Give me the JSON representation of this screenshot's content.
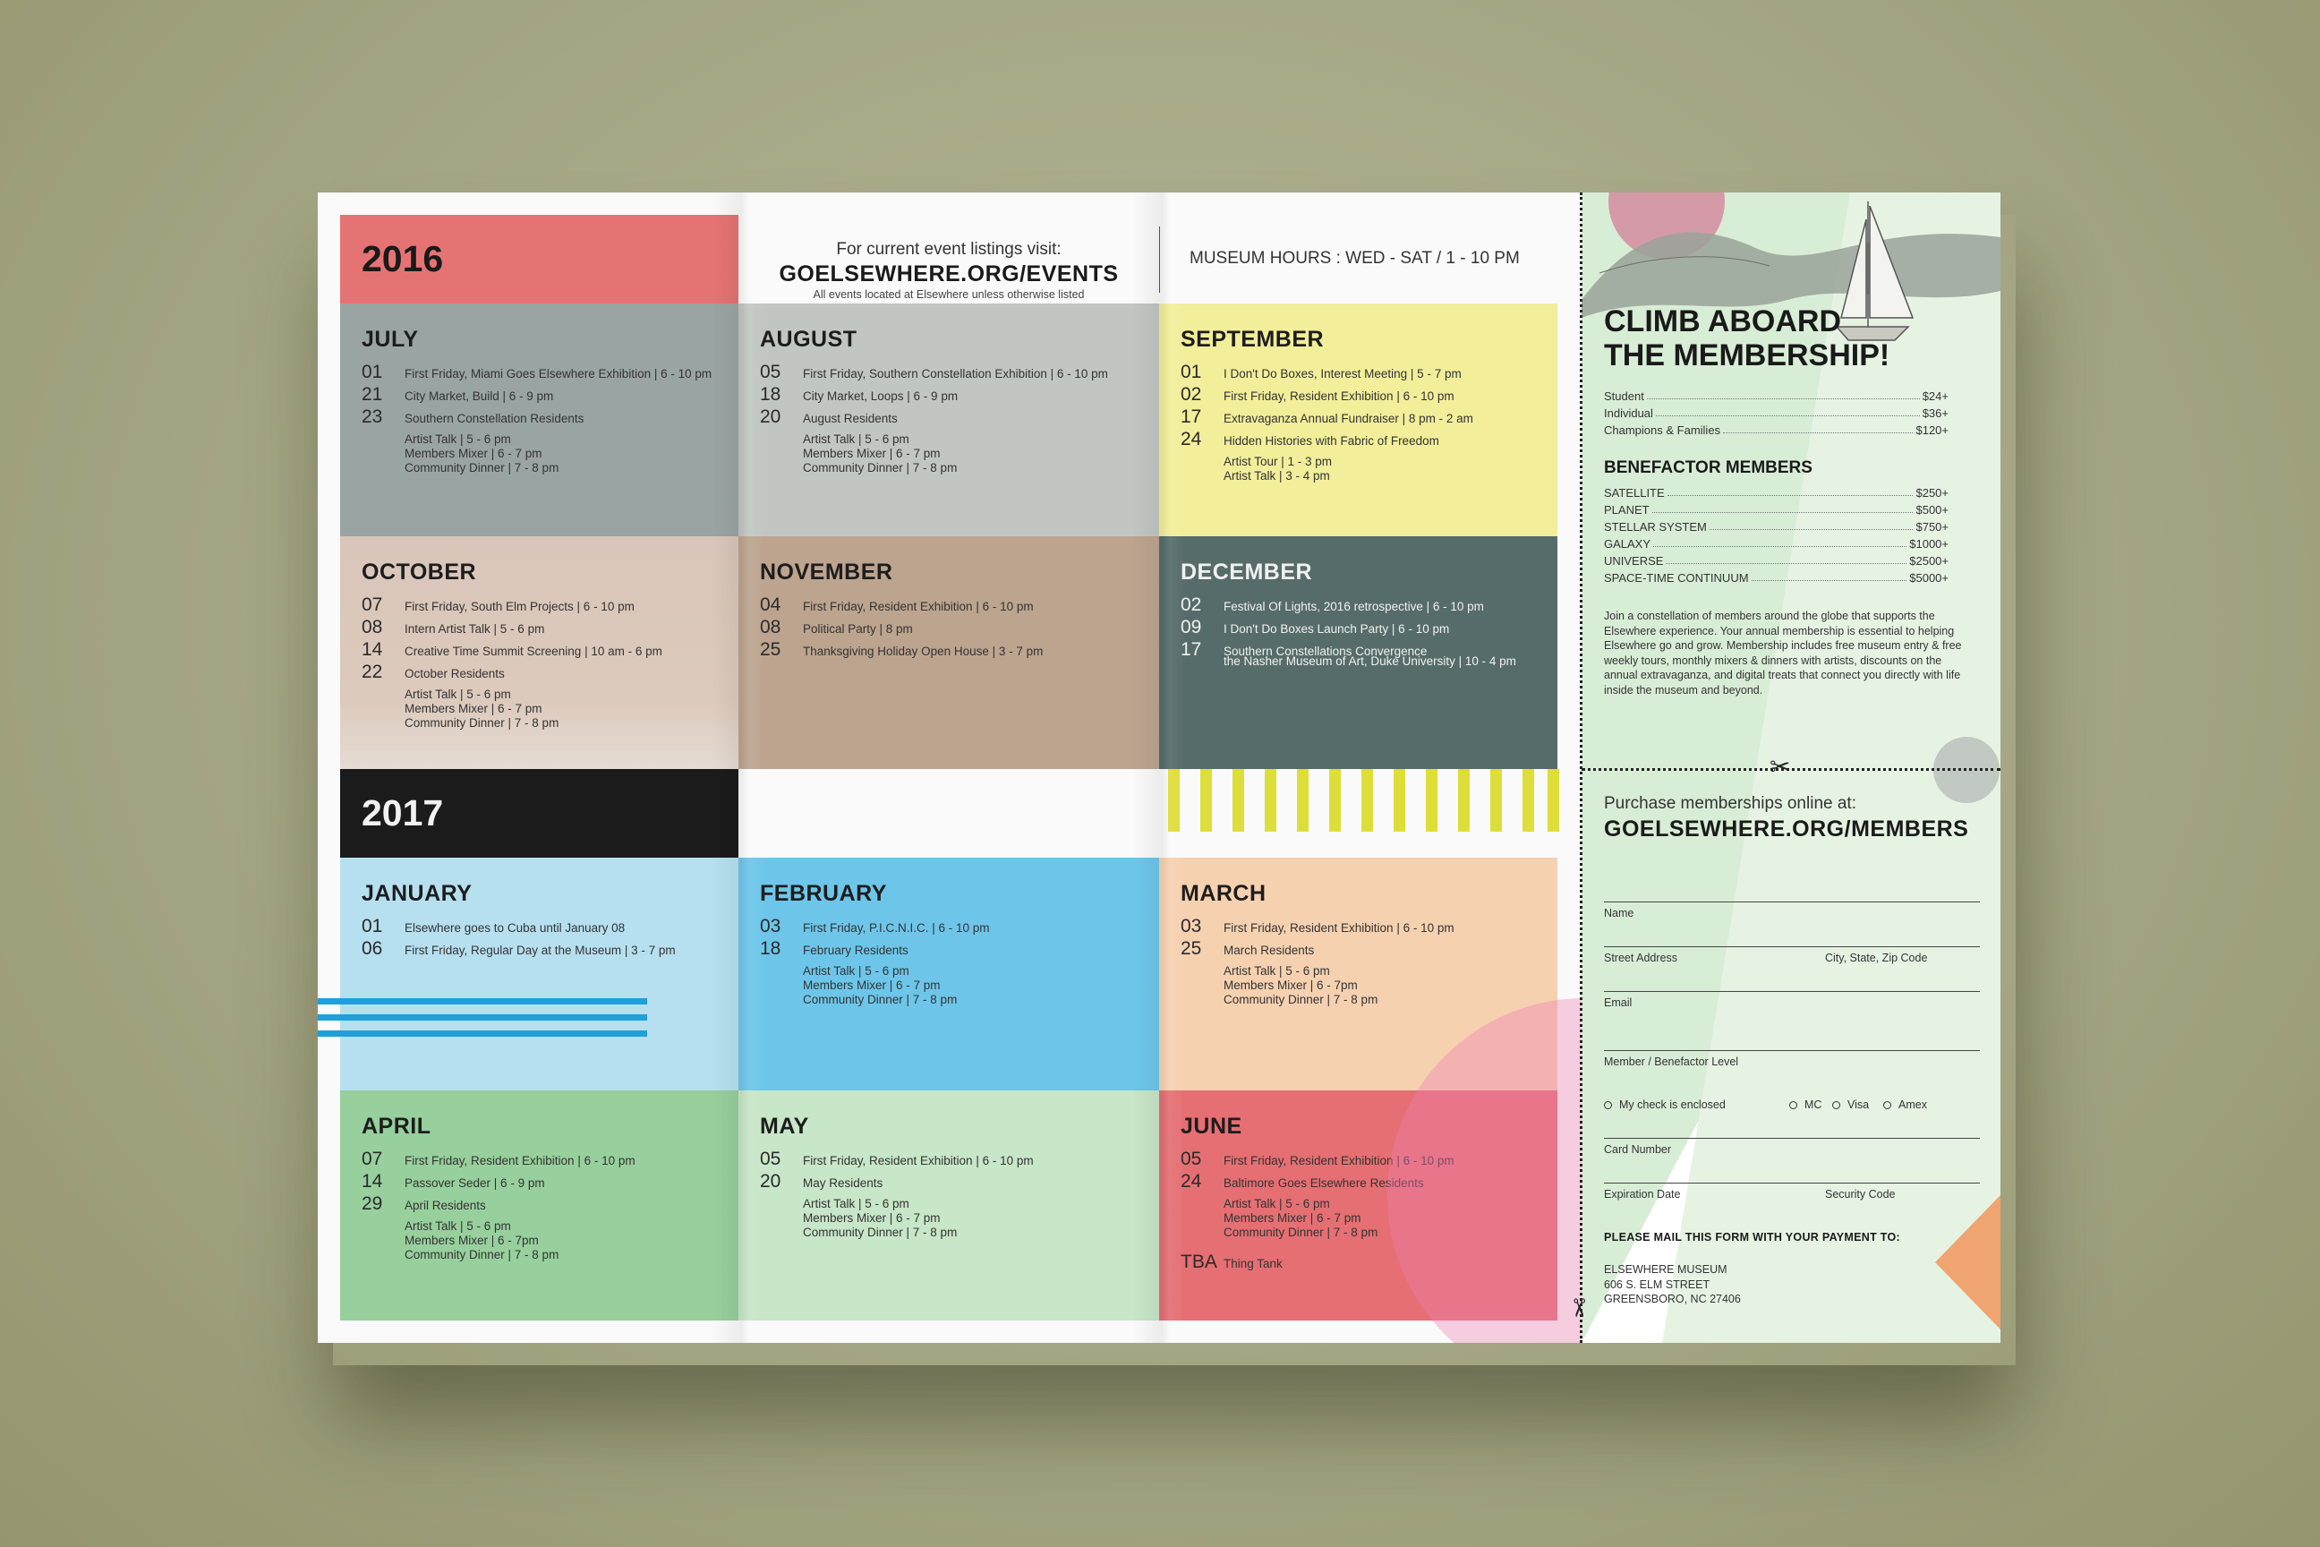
{
  "header": {
    "year_2016": "2016",
    "year_2017": "2017",
    "events_line1": "For current event listings visit:",
    "events_url": "GOELSEWHERE.ORG/EVENTS",
    "events_line3": "All events located at Elsewhere unless otherwise listed",
    "hours": "MUSEUM HOURS : WED - SAT / 1 - 10 PM"
  },
  "months": {
    "july": {
      "name": "JULY",
      "events": [
        {
          "day": "01",
          "text": "First Friday, Miami Goes Elsewhere Exhibition | 6 - 10 pm"
        },
        {
          "day": "21",
          "text": "City Market, Build | 6 - 9 pm"
        },
        {
          "day": "23",
          "text": "Southern Constellation Residents"
        }
      ],
      "sub": [
        "Artist Talk | 5 - 6 pm",
        "Members Mixer | 6 - 7 pm",
        "Community Dinner | 7 - 8 pm"
      ]
    },
    "august": {
      "name": "AUGUST",
      "events": [
        {
          "day": "05",
          "text": "First Friday, Southern Constellation Exhibition | 6 - 10 pm"
        },
        {
          "day": "18",
          "text": "City Market, Loops | 6 - 9 pm"
        },
        {
          "day": "20",
          "text": "August Residents"
        }
      ],
      "sub": [
        "Artist Talk | 5 - 6 pm",
        "Members Mixer | 6 - 7 pm",
        "Community Dinner | 7 - 8 pm"
      ]
    },
    "september": {
      "name": "SEPTEMBER",
      "events": [
        {
          "day": "01",
          "text": "I Don't Do Boxes, Interest Meeting  | 5 - 7 pm"
        },
        {
          "day": "02",
          "text": "First Friday, Resident Exhibition  | 6 - 10 pm"
        },
        {
          "day": "17",
          "text": "Extravaganza Annual Fundraiser | 8 pm - 2 am"
        },
        {
          "day": "24",
          "text": "Hidden Histories with Fabric of Freedom"
        }
      ],
      "sub": [
        "Artist Tour | 1 - 3 pm",
        "Artist Talk | 3 - 4 pm"
      ]
    },
    "october": {
      "name": "OCTOBER",
      "events": [
        {
          "day": "07",
          "text": "First Friday, South Elm Projects | 6 - 10 pm"
        },
        {
          "day": "08",
          "text": "Intern Artist Talk | 5 - 6 pm"
        },
        {
          "day": "14",
          "text": "Creative Time Summit Screening | 10 am - 6 pm"
        },
        {
          "day": "22",
          "text": "October Residents"
        }
      ],
      "sub": [
        "Artist Talk | 5 - 6 pm",
        "Members Mixer | 6 - 7 pm",
        "Community Dinner | 7 - 8 pm"
      ]
    },
    "november": {
      "name": "NOVEMBER",
      "events": [
        {
          "day": "04",
          "text": "First Friday, Resident Exhibition | 6 - 10 pm"
        },
        {
          "day": "08",
          "text": "Political Party | 8 pm"
        },
        {
          "day": "25",
          "text": "Thanksgiving Holiday Open House | 3 - 7 pm"
        }
      ],
      "sub": []
    },
    "december": {
      "name": "DECEMBER",
      "events": [
        {
          "day": "02",
          "text": "Festival Of Lights, 2016 retrospective | 6 - 10 pm"
        },
        {
          "day": "09",
          "text": "I Don't Do Boxes Launch Party | 6 - 10 pm"
        },
        {
          "day": "17",
          "text": "Southern Constellations Convergence"
        }
      ],
      "sub": [
        "the Nasher Museum of Art, Duke University | 10 - 4 pm"
      ]
    },
    "january": {
      "name": "JANUARY",
      "events": [
        {
          "day": "01",
          "text": "Elsewhere goes to Cuba until January 08"
        },
        {
          "day": "06",
          "text": "First Friday, Regular Day at the Museum | 3 - 7 pm"
        }
      ],
      "sub": []
    },
    "february": {
      "name": "FEBRUARY",
      "events": [
        {
          "day": "03",
          "text": "First Friday, P.I.C.N.I.C. | 6 - 10 pm"
        },
        {
          "day": "18",
          "text": "February Residents"
        }
      ],
      "sub": [
        "Artist Talk | 5 - 6 pm",
        "Members Mixer | 6 - 7 pm",
        "Community Dinner | 7 - 8 pm"
      ]
    },
    "march": {
      "name": "MARCH",
      "events": [
        {
          "day": "03",
          "text": "First Friday, Resident Exhibition | 6 - 10 pm"
        },
        {
          "day": "25",
          "text": "March Residents"
        }
      ],
      "sub": [
        "Artist Talk | 5 - 6 pm",
        "Members Mixer | 6 - 7pm",
        "Community Dinner | 7 - 8 pm"
      ]
    },
    "april": {
      "name": "APRIL",
      "events": [
        {
          "day": "07",
          "text": "First Friday, Resident Exhibition | 6 - 10 pm"
        },
        {
          "day": "14",
          "text": "Passover Seder | 6 - 9 pm"
        },
        {
          "day": "29",
          "text": "April Residents"
        }
      ],
      "sub": [
        "Artist Talk | 5 - 6 pm",
        "Members Mixer | 6 - 7pm",
        "Community Dinner | 7 - 8 pm"
      ]
    },
    "may": {
      "name": "MAY",
      "events": [
        {
          "day": "05",
          "text": "First Friday, Resident Exhibition | 6 - 10 pm"
        },
        {
          "day": "20",
          "text": "May Residents"
        }
      ],
      "sub": [
        "Artist Talk | 5 - 6 pm",
        "Members Mixer | 6 - 7 pm",
        "Community Dinner | 7 - 8 pm"
      ]
    },
    "june": {
      "name": "JUNE",
      "events": [
        {
          "day": "05",
          "text": "First Friday, Resident Exhibition | 6 - 10 pm"
        },
        {
          "day": "24",
          "text": "Baltimore Goes Elsewhere Residents"
        }
      ],
      "sub": [
        "Artist Talk | 5 - 6 pm",
        "Members Mixer | 6 - 7 pm",
        "Community Dinner | 7 - 8 pm"
      ],
      "tba": {
        "day": "TBA",
        "text": "Thing Tank"
      }
    }
  },
  "membership": {
    "title_line1": "CLIMB ABOARD",
    "title_line2": "THE MEMBERSHIP!",
    "tiers": [
      {
        "label": "Student",
        "price": "$24+"
      },
      {
        "label": "Individual",
        "price": "$36+"
      },
      {
        "label": "Champions & Families",
        "price": "$120+"
      }
    ],
    "benefactor_title": "BENEFACTOR MEMBERS",
    "benefactor": [
      {
        "label": "SATELLITE",
        "price": "$250+"
      },
      {
        "label": "PLANET",
        "price": "$500+"
      },
      {
        "label": "STELLAR SYSTEM",
        "price": "$750+"
      },
      {
        "label": "GALAXY",
        "price": "$1000+"
      },
      {
        "label": "UNIVERSE",
        "price": "$2500+"
      },
      {
        "label": "SPACE-TIME CONTINUUM",
        "price": "$5000+"
      }
    ],
    "description": "Join a constellation of members around the globe that supports the Elsewhere experience. Your annual membership is essential to helping Elsewhere go and grow. Membership includes free museum entry & free weekly tours, monthly mixers & dinners with artists, discounts on the annual extravaganza, and digital treats that connect you directly with life inside the museum and beyond.",
    "online_label": "Purchase memberships online at:",
    "online_url": "GOELSEWHERE.ORG/MEMBERS"
  },
  "form": {
    "name": "Name",
    "street": "Street Address",
    "city": "City, State, Zip Code",
    "email": "Email",
    "level": "Member / Benefactor Level",
    "check": "My check is enclosed",
    "mc": "MC",
    "visa": "Visa",
    "amex": "Amex",
    "card": "Card Number",
    "expiration": "Expiration Date",
    "security": "Security Code",
    "mail_heading": "PLEASE MAIL THIS FORM WITH YOUR PAYMENT TO:",
    "mail_address": [
      "ELSEWHERE MUSEUM",
      "606 S. ELM STREET",
      "GREENSBORO, NC 27406"
    ]
  },
  "colors": {
    "red_2016": "#e57373",
    "july": "#9aa4a3",
    "august": "#c2c6c3",
    "september": "#f2ee9a",
    "october": "#dcc6b8",
    "november": "#bca48f",
    "december": "#566c6a",
    "january": "#b6e0ef",
    "february": "#6dc6ea",
    "march": "#f6d1b0",
    "april": "#97cf9d",
    "may": "#c8e6c8",
    "june": "#e56f73"
  }
}
